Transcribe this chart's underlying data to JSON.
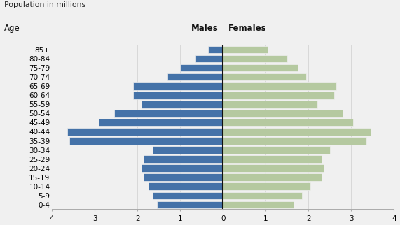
{
  "title": "Population in millions",
  "age_label": "Age",
  "male_label": "Males",
  "female_label": "Females",
  "age_groups": [
    "0-4",
    "5-9",
    "10-14",
    "15-19",
    "20-24",
    "25-29",
    "30-34",
    "35-39",
    "40-44",
    "45-49",
    "50-54",
    "55-59",
    "60-64",
    "65-69",
    "70-74",
    "75-79",
    "80-84",
    "85+"
  ],
  "males": [
    1.55,
    1.65,
    1.75,
    1.85,
    1.9,
    1.85,
    1.65,
    3.6,
    3.65,
    2.9,
    2.55,
    1.9,
    2.1,
    2.1,
    1.3,
    1.0,
    0.65,
    0.35
  ],
  "females": [
    1.65,
    1.85,
    2.05,
    2.3,
    2.35,
    2.3,
    2.5,
    3.35,
    3.45,
    3.05,
    2.8,
    2.2,
    2.6,
    2.65,
    1.95,
    1.75,
    1.5,
    1.05
  ],
  "male_color": "#4472a8",
  "female_color": "#b5c9a0",
  "xlim": 4,
  "background_color": "#f0f0f0",
  "gridline_color": "#d8d8d8",
  "bar_edgecolor": "#f0f0f0",
  "center_line_color": "#111111",
  "tick_fontsize": 7.5,
  "label_fontsize": 8.5,
  "title_fontsize": 7.8
}
